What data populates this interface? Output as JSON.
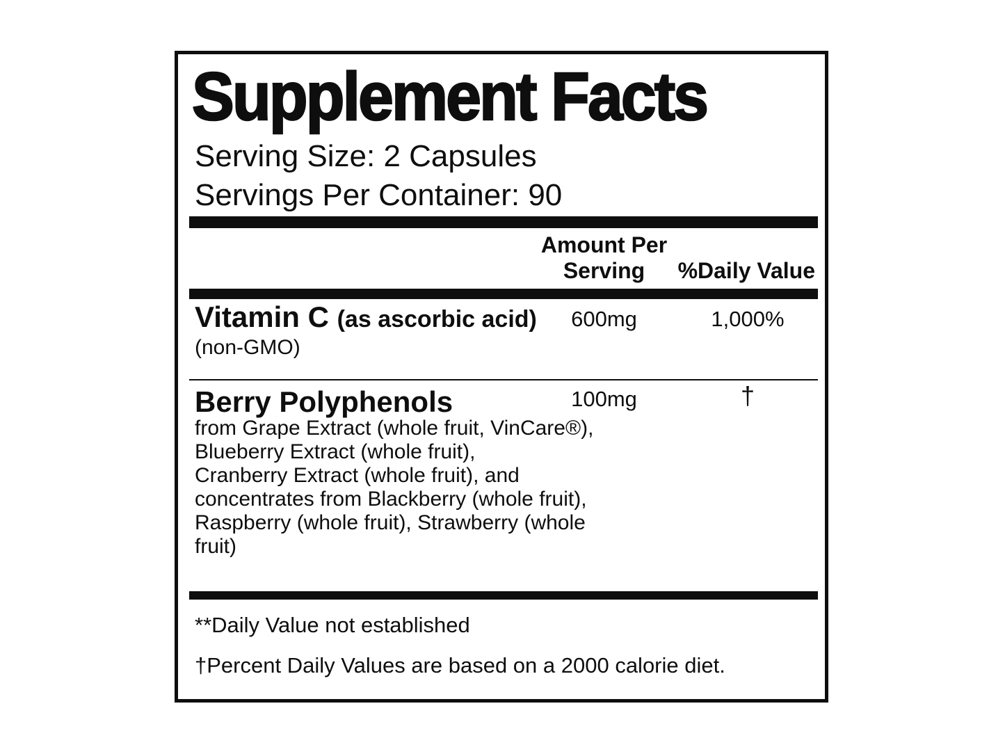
{
  "label": {
    "title": "Supplement Facts",
    "serving_size": "Serving Size: 2 Capsules",
    "servings_per_container": "Servings Per Container: 90",
    "columns": {
      "amount_per_serving": "Amount Per\nServing",
      "daily_value": "%Daily Value"
    },
    "rows": [
      {
        "name": "Vitamin C",
        "name_detail": "(as ascorbic acid)",
        "note": "(non-GMO)",
        "amount": "600mg",
        "daily_value": "1,000%"
      },
      {
        "name": "Berry Polyphenols",
        "description": "from Grape Extract (whole fruit, VinCare®),\nBlueberry Extract (whole fruit),\nCranberry Extract (whole fruit), and\nconcentrates from Blackberry (whole fruit),\nRaspberry (whole fruit), Strawberry (whole\nfruit)",
        "amount": "100mg",
        "daily_value": "†"
      }
    ],
    "footnotes": {
      "daily_value_not_established": "**Daily Value not established",
      "percent_daily_values": "†Percent Daily Values are based on a 2000 calorie diet."
    },
    "colors": {
      "ink": "#0e0e0e",
      "background": "#ffffff"
    }
  }
}
